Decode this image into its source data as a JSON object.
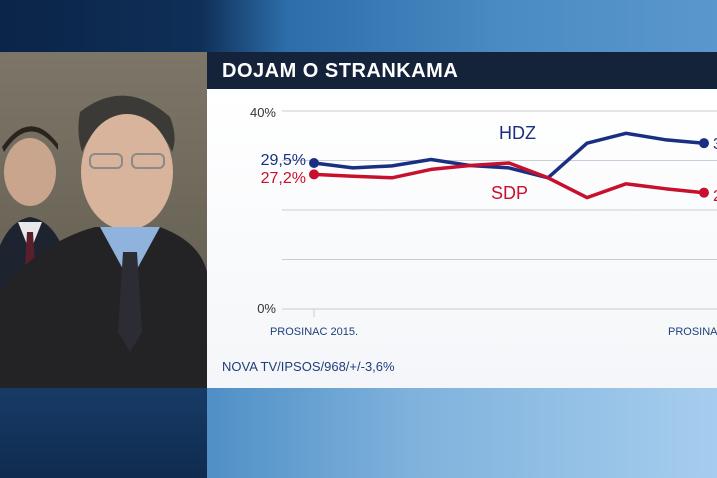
{
  "title": "DOJAM O STRANKAMA",
  "source": "NOVA TV/IPSOS/968/+/-3,6%",
  "colors": {
    "hdz": "#1b2f82",
    "sdp": "#c8102e"
  },
  "chart_data": {
    "type": "line",
    "title": "DOJAM O STRANKAMA",
    "x_start_label": "PROSINAC 2015.",
    "x_end_label": "PROSINAC",
    "y_tick_labels": [
      "40%",
      "0%"
    ],
    "ylim": [
      0,
      40
    ],
    "grid": true,
    "series": [
      {
        "name": "HDZ",
        "start_label": "29,5%",
        "end_label": "3",
        "values": [
          29.5,
          28.5,
          28.9,
          30.2,
          29.0,
          28.5,
          26.5,
          33.5,
          35.5,
          34.2,
          33.5
        ]
      },
      {
        "name": "SDP",
        "start_label": "27,2%",
        "end_label": "2",
        "values": [
          27.2,
          26.8,
          26.5,
          28.2,
          29.0,
          29.5,
          26.5,
          22.5,
          25.3,
          24.3,
          23.5
        ]
      }
    ]
  }
}
